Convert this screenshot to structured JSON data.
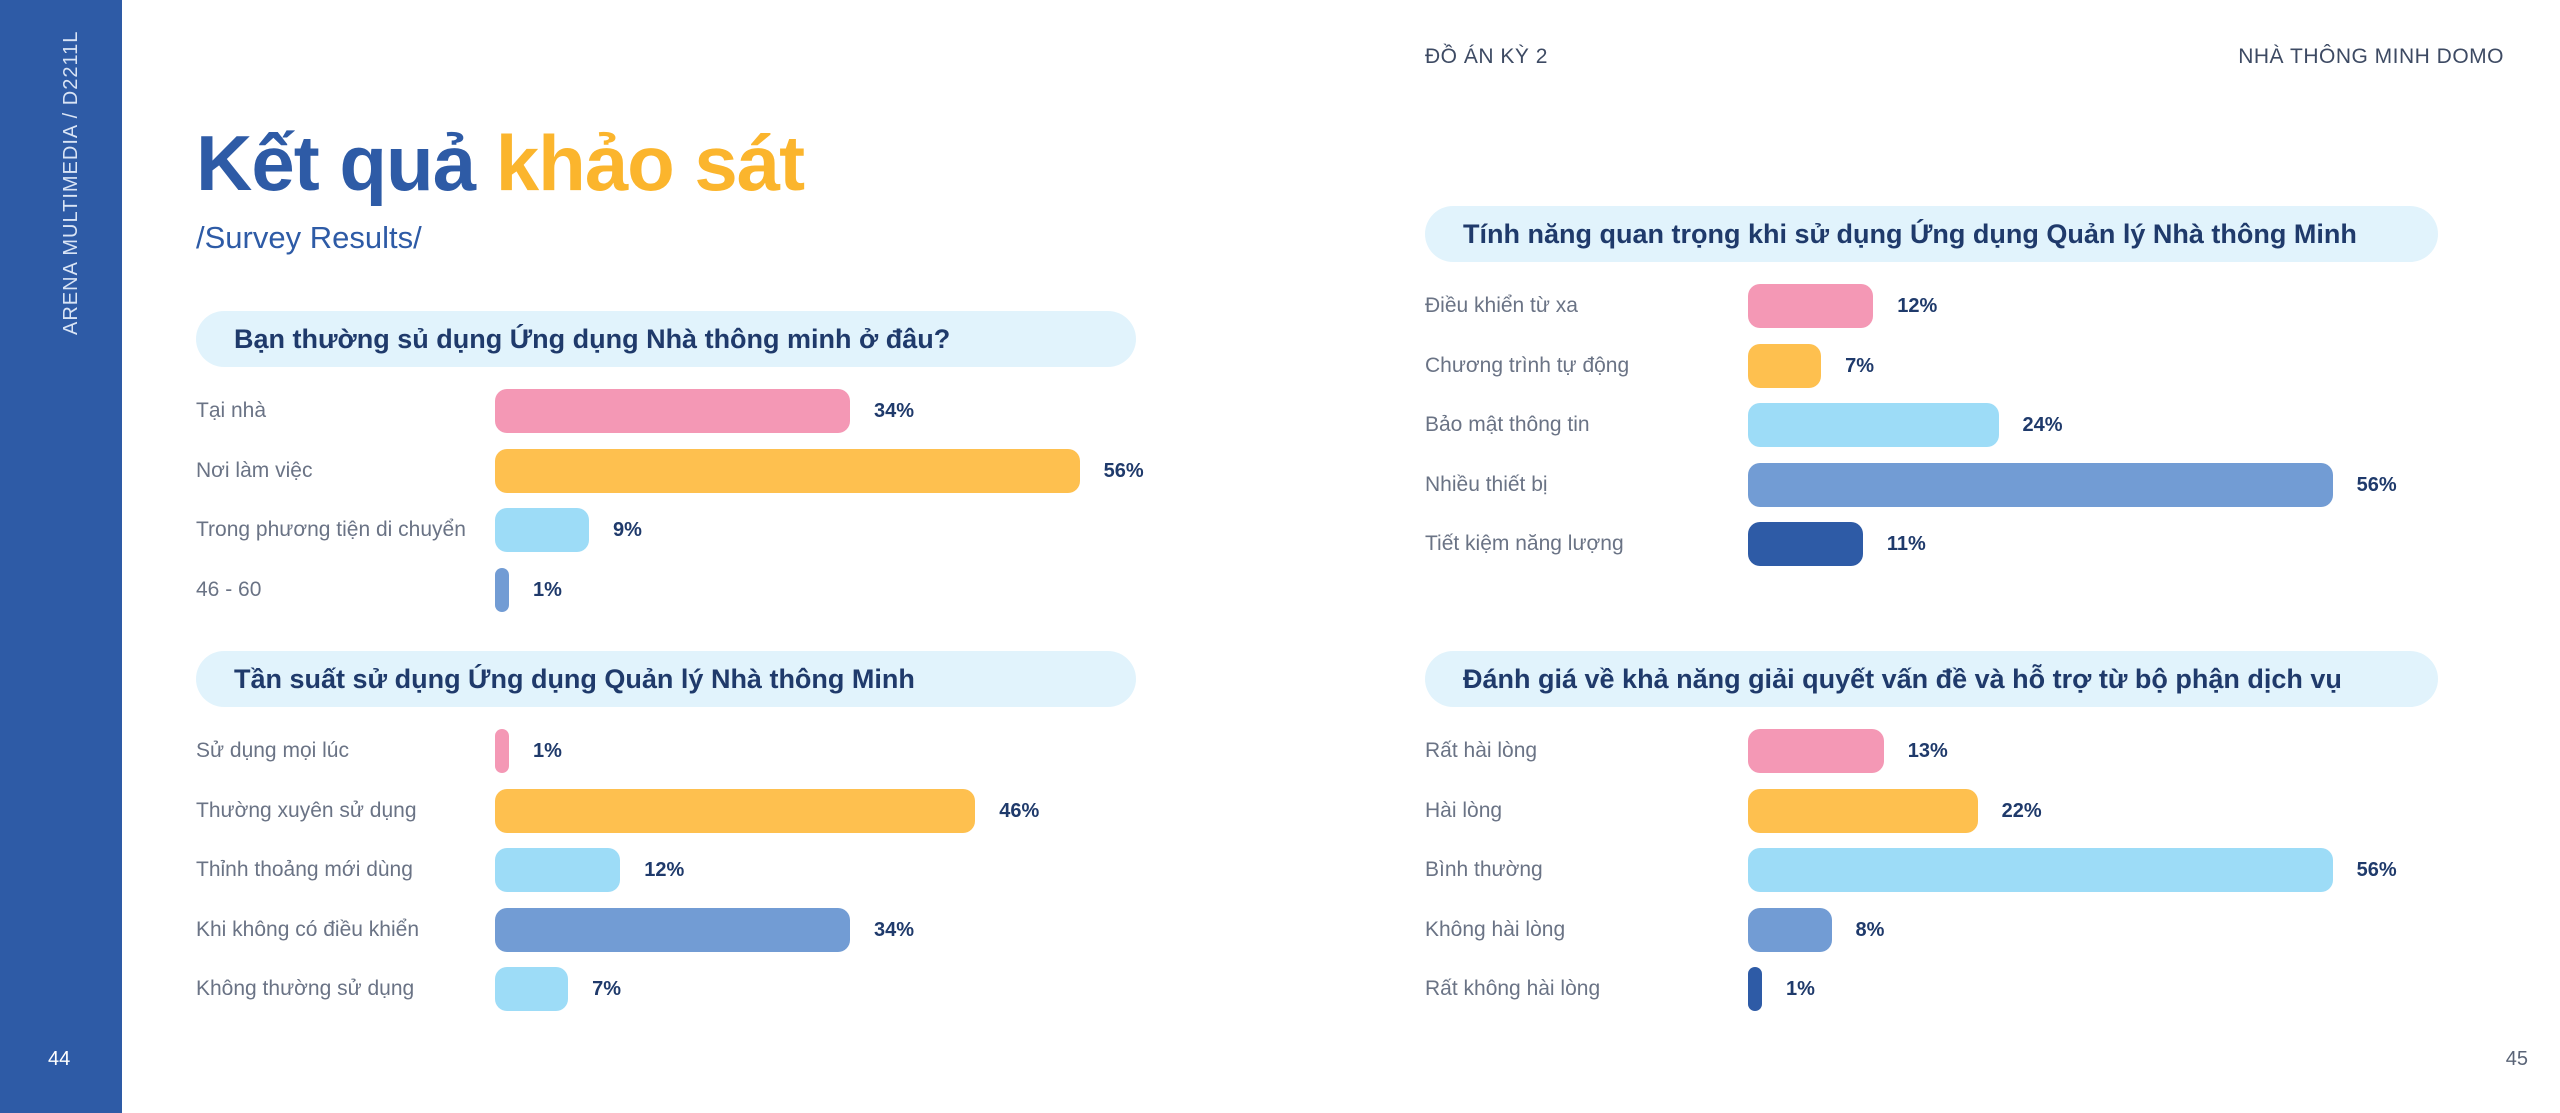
{
  "sidebar": {
    "vertical_text": "ARENA MULTIMEDIA / D2211L",
    "page_left": "44"
  },
  "header": {
    "project": "ĐỒ ÁN KỲ 2",
    "product": "NHÀ THÔNG MINH DOMO"
  },
  "page_right": "45",
  "title": {
    "part1": "Kết quả",
    "part2": "khảo sát"
  },
  "subtitle": "/Survey Results/",
  "colors": {
    "pink": "#f498b5",
    "yellow": "#fec04f",
    "light_blue": "#9ddcf7",
    "mid_blue": "#729cd4",
    "dark_blue": "#2e5ba6",
    "question_bg": "#e1f3fc"
  },
  "chart_data": [
    {
      "type": "bar",
      "title": "Bạn thường sủ dụng Ứng dụng Nhà thông minh ở đâu?",
      "categories": [
        "Tại nhà",
        "Nơi làm việc",
        "Trong phương tiện di chuyển",
        "46 - 60"
      ],
      "values": [
        34,
        56,
        9,
        1
      ],
      "labels": [
        "34%",
        "56%",
        "9%",
        "1%"
      ],
      "colors": [
        "#f498b5",
        "#fec04f",
        "#9ddcf7",
        "#729cd4"
      ]
    },
    {
      "type": "bar",
      "title": "Tần suất sử dụng Ứng dụng Quản lý Nhà thông Minh",
      "categories": [
        "Sử dụng mọi lúc",
        "Thường xuyên sử dụng",
        "Thỉnh thoảng mới dùng",
        "Khi không có điều khiển",
        "Không thường sử dụng"
      ],
      "values": [
        1,
        46,
        12,
        34,
        7
      ],
      "labels": [
        "1%",
        "46%",
        "12%",
        "34%",
        "7%"
      ],
      "colors": [
        "#f498b5",
        "#fec04f",
        "#9ddcf7",
        "#729cd4",
        "#9ddcf7"
      ]
    },
    {
      "type": "bar",
      "title": "Tính năng quan trọng khi sử dụng Ứng dụng Quản lý Nhà thông Minh",
      "categories": [
        "Điều khiển từ xa",
        "Chương trình tự động",
        "Bảo mật thông tin",
        "Nhiều thiết bị",
        "Tiết kiệm năng lượng"
      ],
      "values": [
        12,
        7,
        24,
        56,
        11
      ],
      "labels": [
        "12%",
        "7%",
        "24%",
        "56%",
        "11%"
      ],
      "colors": [
        "#f498b5",
        "#fec04f",
        "#9ddcf7",
        "#729cd4",
        "#2e5ba6"
      ]
    },
    {
      "type": "bar",
      "title": "Đánh giá về khả năng giải quyết vấn đề và hỗ trợ từ bộ phận dịch vụ",
      "categories": [
        "Rất hài lòng",
        "Hài lòng",
        "Bình thường",
        "Không hài lòng",
        "Rất không hài lòng"
      ],
      "values": [
        13,
        22,
        56,
        8,
        1
      ],
      "labels": [
        "13%",
        "22%",
        "56%",
        "8%",
        "1%"
      ],
      "colors": [
        "#f498b5",
        "#fec04f",
        "#9ddcf7",
        "#729cd4",
        "#2e5ba6"
      ]
    }
  ]
}
